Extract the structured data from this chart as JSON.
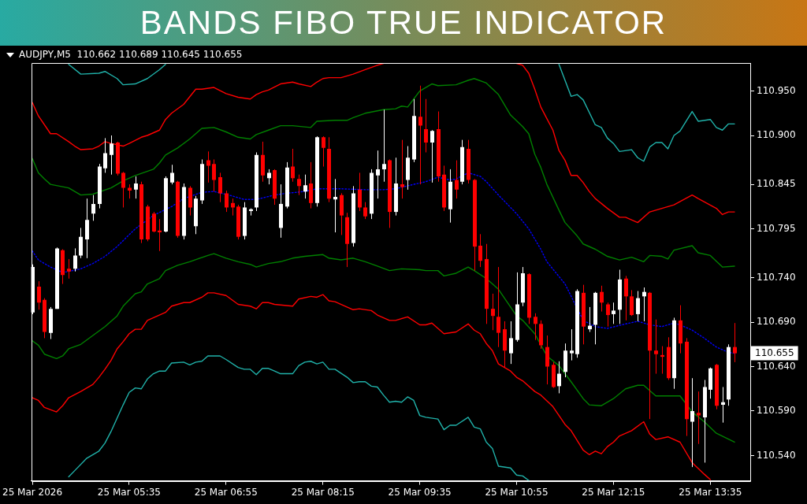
{
  "chart_data": {
    "type": "candlestick",
    "title": "BANDS FIBO TRUE INDICATOR",
    "subtitle": "AUDJPY,M5  110.662 110.689 110.645 110.655",
    "x": [
      "2026-03-25T04:15",
      "2026-03-25T04:20",
      "2026-03-25T04:25",
      "2026-03-25T04:30",
      "2026-03-25T04:35",
      "2026-03-25T04:40",
      "2026-03-25T04:45",
      "2026-03-25T04:50",
      "2026-03-25T04:55",
      "2026-03-25T05:00",
      "2026-03-25T05:05",
      "2026-03-25T05:10",
      "2026-03-25T05:15",
      "2026-03-25T05:20",
      "2026-03-25T05:25",
      "2026-03-25T05:30",
      "2026-03-25T05:35",
      "2026-03-25T05:40",
      "2026-03-25T05:45",
      "2026-03-25T05:50",
      "2026-03-25T05:55",
      "2026-03-25T06:00",
      "2026-03-25T06:05",
      "2026-03-25T06:10",
      "2026-03-25T06:15",
      "2026-03-25T06:20",
      "2026-03-25T06:25",
      "2026-03-25T06:30",
      "2026-03-25T06:35",
      "2026-03-25T06:40",
      "2026-03-25T06:45",
      "2026-03-25T06:50",
      "2026-03-25T06:55",
      "2026-03-25T07:00",
      "2026-03-25T07:05",
      "2026-03-25T07:10",
      "2026-03-25T07:15",
      "2026-03-25T07:20",
      "2026-03-25T07:25",
      "2026-03-25T07:30",
      "2026-03-25T07:35",
      "2026-03-25T07:40",
      "2026-03-25T07:45",
      "2026-03-25T07:50",
      "2026-03-25T07:55",
      "2026-03-25T08:00",
      "2026-03-25T08:05",
      "2026-03-25T08:10",
      "2026-03-25T08:15",
      "2026-03-25T08:20",
      "2026-03-25T08:25",
      "2026-03-25T08:30",
      "2026-03-25T08:35",
      "2026-03-25T08:40",
      "2026-03-25T08:45",
      "2026-03-25T08:50",
      "2026-03-25T08:55",
      "2026-03-25T09:00",
      "2026-03-25T09:05",
      "2026-03-25T09:10",
      "2026-03-25T09:15",
      "2026-03-25T09:20",
      "2026-03-25T09:25",
      "2026-03-25T09:30",
      "2026-03-25T09:35",
      "2026-03-25T09:40",
      "2026-03-25T09:45",
      "2026-03-25T09:50",
      "2026-03-25T09:55",
      "2026-03-25T10:00",
      "2026-03-25T10:05",
      "2026-03-25T10:10",
      "2026-03-25T10:15",
      "2026-03-25T10:20",
      "2026-03-25T10:25",
      "2026-03-25T10:30",
      "2026-03-25T10:35",
      "2026-03-25T10:40",
      "2026-03-25T10:45",
      "2026-03-25T10:50",
      "2026-03-25T10:55",
      "2026-03-25T11:00",
      "2026-03-25T11:05",
      "2026-03-25T11:10",
      "2026-03-25T11:15",
      "2026-03-25T11:20",
      "2026-03-25T11:25",
      "2026-03-25T11:30",
      "2026-03-25T11:35",
      "2026-03-25T11:40",
      "2026-03-25T11:45",
      "2026-03-25T11:50",
      "2026-03-25T11:55",
      "2026-03-25T12:00",
      "2026-03-25T12:05",
      "2026-03-25T12:10",
      "2026-03-25T12:15",
      "2026-03-25T12:20",
      "2026-03-25T12:25",
      "2026-03-25T12:30",
      "2026-03-25T12:35",
      "2026-03-25T12:40",
      "2026-03-25T12:45",
      "2026-03-25T12:50",
      "2026-03-25T12:55",
      "2026-03-25T13:00",
      "2026-03-25T13:05",
      "2026-03-25T13:10",
      "2026-03-25T13:15",
      "2026-03-25T13:20",
      "2026-03-25T13:25",
      "2026-03-25T13:30",
      "2026-03-25T13:35",
      "2026-03-25T13:40",
      "2026-03-25T13:45",
      "2026-03-25T13:50",
      "2026-03-25T13:55"
    ],
    "ohlc": [
      [
        110.701,
        110.755,
        110.699,
        110.752
      ],
      [
        110.73,
        110.736,
        110.704,
        110.712
      ],
      [
        110.715,
        110.717,
        110.672,
        110.679
      ],
      [
        110.678,
        110.707,
        110.671,
        110.705
      ],
      [
        110.705,
        110.774,
        110.705,
        110.773
      ],
      [
        110.771,
        110.772,
        110.733,
        110.743
      ],
      [
        110.75,
        110.761,
        110.739,
        110.747
      ],
      [
        110.75,
        110.773,
        110.747,
        110.765
      ],
      [
        110.765,
        110.796,
        110.762,
        110.786
      ],
      [
        110.783,
        110.829,
        110.762,
        110.805
      ],
      [
        110.812,
        110.833,
        110.804,
        110.823
      ],
      [
        110.823,
        110.868,
        110.818,
        110.865
      ],
      [
        110.863,
        110.897,
        110.858,
        110.88
      ],
      [
        110.878,
        110.9,
        110.856,
        110.891
      ],
      [
        110.892,
        110.893,
        110.855,
        110.857
      ],
      [
        110.858,
        110.859,
        110.819,
        110.841
      ],
      [
        110.841,
        110.845,
        110.829,
        110.838
      ],
      [
        110.839,
        110.854,
        110.829,
        110.846
      ],
      [
        110.845,
        110.848,
        110.779,
        110.783
      ],
      [
        110.82,
        110.822,
        110.781,
        110.783
      ],
      [
        110.812,
        110.814,
        110.791,
        110.792
      ],
      [
        110.793,
        110.806,
        110.77,
        110.791
      ],
      [
        110.792,
        110.854,
        110.791,
        110.852
      ],
      [
        110.847,
        110.867,
        110.845,
        110.858
      ],
      [
        110.848,
        110.849,
        110.785,
        110.787
      ],
      [
        110.787,
        110.846,
        110.783,
        110.842
      ],
      [
        110.841,
        110.843,
        110.81,
        110.819
      ],
      [
        110.798,
        110.832,
        110.789,
        110.829
      ],
      [
        110.827,
        110.873,
        110.823,
        110.868
      ],
      [
        110.872,
        110.882,
        110.847,
        110.866
      ],
      [
        110.868,
        110.873,
        110.837,
        110.85
      ],
      [
        110.853,
        110.858,
        110.825,
        110.835
      ],
      [
        110.835,
        110.838,
        110.814,
        110.819
      ],
      [
        110.824,
        110.829,
        110.81,
        110.819
      ],
      [
        110.82,
        110.822,
        110.783,
        110.786
      ],
      [
        110.787,
        110.825,
        110.783,
        110.819
      ],
      [
        110.815,
        110.818,
        110.81,
        110.817
      ],
      [
        110.819,
        110.881,
        110.815,
        110.878
      ],
      [
        110.878,
        110.893,
        110.848,
        110.855
      ],
      [
        110.852,
        110.862,
        110.845,
        110.858
      ],
      [
        110.861,
        110.862,
        110.822,
        110.829
      ],
      [
        110.796,
        110.845,
        110.785,
        110.823
      ],
      [
        110.82,
        110.87,
        110.818,
        110.864
      ],
      [
        110.865,
        110.885,
        110.848,
        110.852
      ],
      [
        110.851,
        110.856,
        110.833,
        110.843
      ],
      [
        110.837,
        110.856,
        110.829,
        110.844
      ],
      [
        110.846,
        110.87,
        110.818,
        110.824
      ],
      [
        110.824,
        110.899,
        110.82,
        110.898
      ],
      [
        110.898,
        110.899,
        110.865,
        110.886
      ],
      [
        110.885,
        110.898,
        110.825,
        110.829
      ],
      [
        110.828,
        110.851,
        110.791,
        110.831
      ],
      [
        110.833,
        110.835,
        110.788,
        110.81
      ],
      [
        110.808,
        110.813,
        110.752,
        110.778
      ],
      [
        110.779,
        110.843,
        110.775,
        110.835
      ],
      [
        110.839,
        110.858,
        110.815,
        110.819
      ],
      [
        110.819,
        110.825,
        110.806,
        110.809
      ],
      [
        110.812,
        110.862,
        110.806,
        110.858
      ],
      [
        110.855,
        110.883,
        110.829,
        110.862
      ],
      [
        110.862,
        110.929,
        110.848,
        110.868
      ],
      [
        110.872,
        110.873,
        110.796,
        110.814
      ],
      [
        110.814,
        110.875,
        110.81,
        110.846
      ],
      [
        110.845,
        110.895,
        110.829,
        110.842
      ],
      [
        110.85,
        110.888,
        110.839,
        110.875
      ],
      [
        110.873,
        110.941,
        110.87,
        110.922
      ],
      [
        110.921,
        110.956,
        110.845,
        110.911
      ],
      [
        110.907,
        110.941,
        110.881,
        110.892
      ],
      [
        110.892,
        110.906,
        110.847,
        110.905
      ],
      [
        110.907,
        110.927,
        110.848,
        110.854
      ],
      [
        110.856,
        110.866,
        110.815,
        110.819
      ],
      [
        110.817,
        110.862,
        110.802,
        110.848
      ],
      [
        110.85,
        110.872,
        110.829,
        110.839
      ],
      [
        110.848,
        110.895,
        110.845,
        110.887
      ],
      [
        110.885,
        110.895,
        110.846,
        110.85
      ],
      [
        110.85,
        110.851,
        110.748,
        110.775
      ],
      [
        110.776,
        110.789,
        110.752,
        110.759
      ],
      [
        110.761,
        110.778,
        110.688,
        110.705
      ],
      [
        110.705,
        110.722,
        110.681,
        110.697
      ],
      [
        110.696,
        110.752,
        110.662,
        110.678
      ],
      [
        110.682,
        110.691,
        110.639,
        110.658
      ],
      [
        110.655,
        110.691,
        110.643,
        110.672
      ],
      [
        110.67,
        110.746,
        110.668,
        110.71
      ],
      [
        110.712,
        110.752,
        110.708,
        110.745
      ],
      [
        110.744,
        110.745,
        110.688,
        110.695
      ],
      [
        110.696,
        110.7,
        110.67,
        110.688
      ],
      [
        110.688,
        110.692,
        110.66,
        110.664
      ],
      [
        110.662,
        110.675,
        110.62,
        110.64
      ],
      [
        110.642,
        110.645,
        110.616,
        110.617
      ],
      [
        110.618,
        110.646,
        110.61,
        110.632
      ],
      [
        110.634,
        110.666,
        110.628,
        110.658
      ],
      [
        110.655,
        110.682,
        110.647,
        110.658
      ],
      [
        110.654,
        110.727,
        110.65,
        110.725
      ],
      [
        110.723,
        110.732,
        110.665,
        110.685
      ],
      [
        110.682,
        110.707,
        110.679,
        110.686
      ],
      [
        110.687,
        110.724,
        110.665,
        110.723
      ],
      [
        110.724,
        110.731,
        110.702,
        110.712
      ],
      [
        110.71,
        110.712,
        110.685,
        110.698
      ],
      [
        110.699,
        110.712,
        110.688,
        110.703
      ],
      [
        110.704,
        110.749,
        110.688,
        110.738
      ],
      [
        110.739,
        110.742,
        110.692,
        110.719
      ],
      [
        110.719,
        110.726,
        110.697,
        110.698
      ],
      [
        110.699,
        110.725,
        110.691,
        110.717
      ],
      [
        110.719,
        110.729,
        110.691,
        110.724
      ],
      [
        110.723,
        110.724,
        110.581,
        110.658
      ],
      [
        110.658,
        110.693,
        110.632,
        110.654
      ],
      [
        110.653,
        110.663,
        110.632,
        110.651
      ],
      [
        110.662,
        110.673,
        110.625,
        110.627
      ],
      [
        110.627,
        110.695,
        110.615,
        110.692
      ],
      [
        110.692,
        110.709,
        110.655,
        110.666
      ],
      [
        110.668,
        110.672,
        110.562,
        110.581
      ],
      [
        110.578,
        110.627,
        110.527,
        110.59
      ],
      [
        110.588,
        110.612,
        110.553,
        110.585
      ],
      [
        110.583,
        110.625,
        110.532,
        110.617
      ],
      [
        110.614,
        110.639,
        110.604,
        110.638
      ],
      [
        110.642,
        110.643,
        110.592,
        110.596
      ],
      [
        110.597,
        110.617,
        110.577,
        110.6
      ],
      [
        110.603,
        110.665,
        110.596,
        110.662
      ],
      [
        110.662,
        110.689,
        110.645,
        110.655
      ]
    ],
    "colors": [
      "#ffffff",
      "#ff0000",
      "#ff0000",
      "#ffffff",
      "#ffffff",
      "#ff0000",
      "#ff0000",
      "#ffffff",
      "#ffffff",
      "#ffffff",
      "#ffffff",
      "#ffffff",
      "#ffffff",
      "#ffffff",
      "#ff0000",
      "#ff0000",
      "#ff0000",
      "#ffffff",
      "#ff0000",
      "#ff0000",
      "#ff0000",
      "#ff0000",
      "#ffffff",
      "#ffffff",
      "#ff0000",
      "#ffffff",
      "#ff0000",
      "#ffffff",
      "#ffffff",
      "#ff0000",
      "#ff0000",
      "#ff0000",
      "#ff0000",
      "#ff0000",
      "#ff0000",
      "#ffffff",
      "#ffffff",
      "#ffffff",
      "#ff0000",
      "#ffffff",
      "#ff0000",
      "#ffffff",
      "#ffffff",
      "#ff0000",
      "#ff0000",
      "#ffffff",
      "#ff0000",
      "#ffffff",
      "#ff0000",
      "#ff0000",
      "#ffffff",
      "#ff0000",
      "#ff0000",
      "#ffffff",
      "#ff0000",
      "#ff0000",
      "#ffffff",
      "#ffffff",
      "#ffffff",
      "#ff0000",
      "#ffffff",
      "#ff0000",
      "#ffffff",
      "#ffffff",
      "#ff0000",
      "#ff0000",
      "#ffffff",
      "#ff0000",
      "#ff0000",
      "#ffffff",
      "#ff0000",
      "#ffffff",
      "#ff0000",
      "#ff0000",
      "#ff0000",
      "#ff0000",
      "#ff0000",
      "#ff0000",
      "#ff0000",
      "#ffffff",
      "#ffffff",
      "#ffffff",
      "#ff0000",
      "#ff0000",
      "#ff0000",
      "#ff0000",
      "#ff0000",
      "#ffffff",
      "#ffffff",
      "#ffffff",
      "#ffffff",
      "#ff0000",
      "#ffffff",
      "#ffffff",
      "#ff0000",
      "#ff0000",
      "#ffffff",
      "#ffffff",
      "#ff0000",
      "#ff0000",
      "#ffffff",
      "#ffffff",
      "#ff0000",
      "#ff0000",
      "#ff0000",
      "#ff0000",
      "#ffffff",
      "#ff0000",
      "#ff0000",
      "#ffffff",
      "#ff0000",
      "#ffffff",
      "#ffffff",
      "#ff0000",
      "#ffffff",
      "#ffffff",
      "#ff0000"
    ],
    "line_style": "solid",
    "series": [
      {
        "type": "line",
        "color": "#20b2aa",
        "x": [
          "2026-03-25T04:45",
          "2026-03-25T04:55",
          "2026-03-25T05:10",
          "2026-03-25T05:15",
          "2026-03-25T05:25",
          "2026-03-25T05:30",
          "2026-03-25T05:40",
          "2026-03-25T05:50",
          "2026-03-25T06:00",
          "2026-03-25T06:05",
          "2026-03-25T08:30",
          "2026-03-25T11:30",
          "2026-03-25T11:40",
          "2026-03-25T11:45",
          "2026-03-25T11:50",
          "2026-03-25T12:00",
          "2026-03-25T12:05",
          "2026-03-25T12:10",
          "2026-03-25T12:15",
          "2026-03-25T12:20",
          "2026-03-25T12:30",
          "2026-03-25T12:35",
          "2026-03-25T12:40",
          "2026-03-25T12:45",
          "2026-03-25T12:50",
          "2026-03-25T12:55",
          "2026-03-25T13:00",
          "2026-03-25T13:05",
          "2026-03-25T13:10",
          "2026-03-25T13:20",
          "2026-03-25T13:25",
          "2026-03-25T13:35",
          "2026-03-25T13:40",
          "2026-03-25T13:45",
          "2026-03-25T13:50",
          "2026-03-25T13:55"
        ],
        "values": [
          110.98,
          110.969,
          110.97,
          110.972,
          110.964,
          110.957,
          110.958,
          110.964,
          110.974,
          110.98,
          null,
          110.98,
          110.944,
          110.946,
          110.94,
          110.912,
          110.909,
          110.897,
          110.891,
          110.882,
          110.884,
          110.875,
          110.871,
          110.887,
          110.892,
          110.892,
          110.885,
          110.9,
          110.905,
          110.927,
          110.916,
          110.918,
          110.909,
          110.906,
          110.913,
          110.913
        ]
      },
      {
        "type": "line",
        "color": "#ff0000",
        "x": [
          "2026-03-25T04:15",
          "2026-03-25T04:20",
          "2026-03-25T04:30",
          "2026-03-25T04:35",
          "2026-03-25T04:45",
          "2026-03-25T04:50",
          "2026-03-25T04:55",
          "2026-03-25T05:05",
          "2026-03-25T05:10",
          "2026-03-25T05:15",
          "2026-03-25T05:20",
          "2026-03-25T05:30",
          "2026-03-25T05:35",
          "2026-03-25T05:45",
          "2026-03-25T05:50",
          "2026-03-25T06:00",
          "2026-03-25T06:05",
          "2026-03-25T06:10",
          "2026-03-25T06:20",
          "2026-03-25T06:30",
          "2026-03-25T06:35",
          "2026-03-25T06:45",
          "2026-03-25T06:55",
          "2026-03-25T07:05",
          "2026-03-25T07:15",
          "2026-03-25T07:20",
          "2026-03-25T07:25",
          "2026-03-25T07:30",
          "2026-03-25T07:40",
          "2026-03-25T07:50",
          "2026-03-25T07:55",
          "2026-03-25T08:05",
          "2026-03-25T08:10",
          "2026-03-25T08:15",
          "2026-03-25T08:20",
          "2026-03-25T08:30",
          "2026-03-25T08:40",
          "2026-03-25T08:50",
          "2026-03-25T09:00",
          "2026-03-25T09:05",
          "2026-03-25T10:05",
          "2026-03-25T10:55",
          "2026-03-25T11:00",
          "2026-03-25T11:05",
          "2026-03-25T11:10",
          "2026-03-25T11:15",
          "2026-03-25T11:20",
          "2026-03-25T11:25",
          "2026-03-25T11:30",
          "2026-03-25T11:35",
          "2026-03-25T11:40",
          "2026-03-25T11:45",
          "2026-03-25T11:50",
          "2026-03-25T11:55",
          "2026-03-25T12:00",
          "2026-03-25T12:10",
          "2026-03-25T12:20",
          "2026-03-25T12:25",
          "2026-03-25T12:35",
          "2026-03-25T12:45",
          "2026-03-25T12:55",
          "2026-03-25T13:05",
          "2026-03-25T13:20",
          "2026-03-25T13:25",
          "2026-03-25T13:40",
          "2026-03-25T13:45",
          "2026-03-25T13:50",
          "2026-03-25T13:55"
        ],
        "values": [
          110.937,
          110.922,
          110.902,
          110.902,
          110.893,
          110.888,
          110.884,
          110.885,
          110.888,
          110.893,
          110.891,
          110.888,
          110.891,
          110.898,
          110.9,
          110.906,
          110.918,
          110.925,
          110.935,
          110.952,
          110.952,
          110.954,
          110.947,
          110.943,
          110.941,
          110.946,
          110.949,
          110.951,
          110.958,
          110.96,
          110.958,
          110.955,
          110.96,
          110.964,
          110.965,
          110.965,
          110.969,
          110.974,
          110.979,
          110.981,
          null,
          110.981,
          110.979,
          110.97,
          110.952,
          110.932,
          110.919,
          110.906,
          110.883,
          110.872,
          110.855,
          110.855,
          110.847,
          110.837,
          110.829,
          110.818,
          110.808,
          110.808,
          110.802,
          110.814,
          110.818,
          110.822,
          110.833,
          110.829,
          110.818,
          110.811,
          110.814,
          110.814
        ]
      },
      {
        "type": "line",
        "color": "#008000",
        "x": [
          "2026-03-25T04:15",
          "2026-03-25T04:20",
          "2026-03-25T04:25",
          "2026-03-25T04:30",
          "2026-03-25T04:45",
          "2026-03-25T04:55",
          "2026-03-25T05:05",
          "2026-03-25T05:20",
          "2026-03-25T05:30",
          "2026-03-25T05:40",
          "2026-03-25T05:55",
          "2026-03-25T06:00",
          "2026-03-25T06:05",
          "2026-03-25T06:15",
          "2026-03-25T06:25",
          "2026-03-25T06:35",
          "2026-03-25T06:45",
          "2026-03-25T06:55",
          "2026-03-25T07:05",
          "2026-03-25T07:15",
          "2026-03-25T07:20",
          "2026-03-25T07:30",
          "2026-03-25T07:40",
          "2026-03-25T07:50",
          "2026-03-25T08:05",
          "2026-03-25T08:10",
          "2026-03-25T08:25",
          "2026-03-25T08:35",
          "2026-03-25T08:40",
          "2026-03-25T08:50",
          "2026-03-25T09:05",
          "2026-03-25T09:15",
          "2026-03-25T09:20",
          "2026-03-25T09:25",
          "2026-03-25T09:30",
          "2026-03-25T09:35",
          "2026-03-25T09:45",
          "2026-03-25T09:50",
          "2026-03-25T10:05",
          "2026-03-25T10:15",
          "2026-03-25T10:20",
          "2026-03-25T10:30",
          "2026-03-25T10:40",
          "2026-03-25T10:50",
          "2026-03-25T11:00",
          "2026-03-25T11:05",
          "2026-03-25T11:10",
          "2026-03-25T11:15",
          "2026-03-25T11:20",
          "2026-03-25T11:30",
          "2026-03-25T11:35",
          "2026-03-25T11:45",
          "2026-03-25T11:50",
          "2026-03-25T12:00",
          "2026-03-25T12:10",
          "2026-03-25T12:20",
          "2026-03-25T12:30",
          "2026-03-25T12:40",
          "2026-03-25T12:45",
          "2026-03-25T12:55",
          "2026-03-25T13:00",
          "2026-03-25T13:05",
          "2026-03-25T13:20",
          "2026-03-25T13:25",
          "2026-03-25T13:35",
          "2026-03-25T13:45",
          "2026-03-25T13:55"
        ],
        "values": [
          110.874,
          110.858,
          110.851,
          110.845,
          110.841,
          110.833,
          110.834,
          110.841,
          110.849,
          110.855,
          110.862,
          110.869,
          110.878,
          110.886,
          110.896,
          110.908,
          110.909,
          110.904,
          110.898,
          110.896,
          110.901,
          110.906,
          110.911,
          110.911,
          110.909,
          110.916,
          110.917,
          110.917,
          110.92,
          110.925,
          110.929,
          110.93,
          110.933,
          110.932,
          110.941,
          110.95,
          110.958,
          110.956,
          110.957,
          110.962,
          110.964,
          110.959,
          110.946,
          110.923,
          110.91,
          110.902,
          110.879,
          110.864,
          110.845,
          110.816,
          110.802,
          110.787,
          110.778,
          110.772,
          110.764,
          110.76,
          110.763,
          110.758,
          110.765,
          110.764,
          110.761,
          110.771,
          110.776,
          110.768,
          110.765,
          110.752,
          110.753
        ]
      },
      {
        "type": "line",
        "color": "#0000ff",
        "line_style": "dotted",
        "x": [
          "2026-03-25T04:15",
          "2026-03-25T04:20",
          "2026-03-25T04:30",
          "2026-03-25T04:40",
          "2026-03-25T04:45",
          "2026-03-25T04:55",
          "2026-03-25T05:05",
          "2026-03-25T05:15",
          "2026-03-25T05:25",
          "2026-03-25T05:40",
          "2026-03-25T05:55",
          "2026-03-25T06:10",
          "2026-03-25T06:20",
          "2026-03-25T06:35",
          "2026-03-25T06:45",
          "2026-03-25T07:00",
          "2026-03-25T07:10",
          "2026-03-25T07:20",
          "2026-03-25T07:35",
          "2026-03-25T07:45",
          "2026-03-25T08:00",
          "2026-03-25T08:10",
          "2026-03-25T08:30",
          "2026-03-25T08:50",
          "2026-03-25T09:05",
          "2026-03-25T09:15",
          "2026-03-25T09:30",
          "2026-03-25T09:40",
          "2026-03-25T09:50",
          "2026-03-25T10:00",
          "2026-03-25T10:05",
          "2026-03-25T10:15",
          "2026-03-25T10:25",
          "2026-03-25T10:30",
          "2026-03-25T10:40",
          "2026-03-25T10:55",
          "2026-03-25T11:05",
          "2026-03-25T11:15",
          "2026-03-25T11:20",
          "2026-03-25T11:35",
          "2026-03-25T11:50",
          "2026-03-25T12:00",
          "2026-03-25T12:10",
          "2026-03-25T12:25",
          "2026-03-25T12:35",
          "2026-03-25T12:45",
          "2026-03-25T12:55",
          "2026-03-25T13:05",
          "2026-03-25T13:10",
          "2026-03-25T13:20",
          "2026-03-25T13:30",
          "2026-03-25T13:40",
          "2026-03-25T13:50",
          "2026-03-25T13:55"
        ],
        "values": [
          110.77,
          110.76,
          110.752,
          110.746,
          110.747,
          110.75,
          110.756,
          110.764,
          110.775,
          110.795,
          110.81,
          110.82,
          110.829,
          110.836,
          110.837,
          110.832,
          110.828,
          110.828,
          110.833,
          110.835,
          110.837,
          110.84,
          110.84,
          110.839,
          110.839,
          110.84,
          110.845,
          110.848,
          110.853,
          110.85,
          110.851,
          110.858,
          110.854,
          110.848,
          110.833,
          110.812,
          110.795,
          110.772,
          110.758,
          110.733,
          110.692,
          110.685,
          110.683,
          110.688,
          110.691,
          110.687,
          110.685,
          110.689,
          110.687,
          110.681,
          110.672,
          110.662,
          110.656,
          110.655
        ]
      },
      {
        "type": "line",
        "color": "#008000",
        "x": [
          "2026-03-25T04:15",
          "2026-03-25T04:20",
          "2026-03-25T04:25",
          "2026-03-25T04:35",
          "2026-03-25T04:40",
          "2026-03-25T04:45",
          "2026-03-25T04:55",
          "2026-03-25T05:05",
          "2026-03-25T05:15",
          "2026-03-25T05:25",
          "2026-03-25T05:30",
          "2026-03-25T05:40",
          "2026-03-25T05:45",
          "2026-03-25T05:50",
          "2026-03-25T06:00",
          "2026-03-25T06:05",
          "2026-03-25T06:15",
          "2026-03-25T06:25",
          "2026-03-25T06:40",
          "2026-03-25T06:45",
          "2026-03-25T06:55",
          "2026-03-25T07:05",
          "2026-03-25T07:15",
          "2026-03-25T07:20",
          "2026-03-25T07:30",
          "2026-03-25T07:40",
          "2026-03-25T07:50",
          "2026-03-25T08:00",
          "2026-03-25T08:15",
          "2026-03-25T08:20",
          "2026-03-25T08:30",
          "2026-03-25T08:40",
          "2026-03-25T08:50",
          "2026-03-25T09:00",
          "2026-03-25T09:10",
          "2026-03-25T09:20",
          "2026-03-25T09:35",
          "2026-03-25T09:40",
          "2026-03-25T09:50",
          "2026-03-25T09:55",
          "2026-03-25T10:05",
          "2026-03-25T10:15",
          "2026-03-25T10:20",
          "2026-03-25T10:30",
          "2026-03-25T10:40",
          "2026-03-25T10:55",
          "2026-03-25T11:00",
          "2026-03-25T11:10",
          "2026-03-25T11:20",
          "2026-03-25T11:30",
          "2026-03-25T11:40",
          "2026-03-25T11:50",
          "2026-03-25T11:55",
          "2026-03-25T12:05",
          "2026-03-25T12:15",
          "2026-03-25T12:25",
          "2026-03-25T12:35",
          "2026-03-25T12:40",
          "2026-03-25T12:50",
          "2026-03-25T13:00",
          "2026-03-25T13:10",
          "2026-03-25T13:20",
          "2026-03-25T13:30",
          "2026-03-25T13:40",
          "2026-03-25T13:55"
        ],
        "values": [
          110.669,
          110.664,
          110.654,
          110.649,
          110.652,
          110.66,
          110.665,
          110.675,
          110.685,
          110.697,
          110.708,
          110.722,
          110.724,
          110.733,
          110.739,
          110.748,
          110.754,
          110.758,
          110.765,
          110.767,
          110.762,
          110.758,
          110.755,
          110.752,
          110.756,
          110.758,
          110.762,
          110.764,
          110.766,
          110.762,
          110.76,
          110.762,
          110.758,
          110.753,
          110.748,
          110.75,
          110.749,
          110.748,
          110.748,
          110.742,
          110.745,
          110.752,
          110.748,
          110.739,
          110.727,
          110.697,
          110.692,
          110.677,
          110.652,
          110.641,
          110.623,
          110.604,
          110.597,
          110.596,
          110.604,
          110.615,
          110.619,
          110.619,
          110.607,
          110.607,
          110.607,
          110.589,
          110.578,
          110.565,
          110.555
        ]
      },
      {
        "type": "line",
        "color": "#ff0000",
        "x": [
          "2026-03-25T04:15",
          "2026-03-25T04:20",
          "2026-03-25T04:25",
          "2026-03-25T04:35",
          "2026-03-25T04:40",
          "2026-03-25T04:45",
          "2026-03-25T04:55",
          "2026-03-25T05:05",
          "2026-03-25T05:10",
          "2026-03-25T05:15",
          "2026-03-25T05:20",
          "2026-03-25T05:25",
          "2026-03-25T05:30",
          "2026-03-25T05:35",
          "2026-03-25T05:40",
          "2026-03-25T05:45",
          "2026-03-25T05:50",
          "2026-03-25T06:05",
          "2026-03-25T06:10",
          "2026-03-25T06:20",
          "2026-03-25T06:25",
          "2026-03-25T06:35",
          "2026-03-25T06:40",
          "2026-03-25T06:45",
          "2026-03-25T06:55",
          "2026-03-25T07:05",
          "2026-03-25T07:15",
          "2026-03-25T07:20",
          "2026-03-25T07:25",
          "2026-03-25T07:30",
          "2026-03-25T07:35",
          "2026-03-25T07:50",
          "2026-03-25T07:55",
          "2026-03-25T08:05",
          "2026-03-25T08:10",
          "2026-03-25T08:15",
          "2026-03-25T08:20",
          "2026-03-25T08:25",
          "2026-03-25T08:40",
          "2026-03-25T08:45",
          "2026-03-25T08:55",
          "2026-03-25T09:00",
          "2026-03-25T09:10",
          "2026-03-25T09:15",
          "2026-03-25T09:25",
          "2026-03-25T09:35",
          "2026-03-25T09:40",
          "2026-03-25T09:45",
          "2026-03-25T09:55",
          "2026-03-25T10:05",
          "2026-03-25T10:15",
          "2026-03-25T10:20",
          "2026-03-25T10:25",
          "2026-03-25T10:30",
          "2026-03-25T10:35",
          "2026-03-25T10:40",
          "2026-03-25T10:50",
          "2026-03-25T10:55",
          "2026-03-25T11:00",
          "2026-03-25T11:10",
          "2026-03-25T11:15",
          "2026-03-25T11:25",
          "2026-03-25T11:35",
          "2026-03-25T11:40",
          "2026-03-25T11:50",
          "2026-03-25T11:55",
          "2026-03-25T12:00",
          "2026-03-25T12:05",
          "2026-03-25T12:10",
          "2026-03-25T12:15",
          "2026-03-25T12:20",
          "2026-03-25T12:30",
          "2026-03-25T12:40",
          "2026-03-25T12:45",
          "2026-03-25T12:50",
          "2026-03-25T13:00",
          "2026-03-25T13:10",
          "2026-03-25T13:20",
          "2026-03-25T13:30",
          "2026-03-25T13:35"
        ],
        "values": [
          110.605,
          110.602,
          110.594,
          110.589,
          110.596,
          110.605,
          110.612,
          110.62,
          110.628,
          110.637,
          110.647,
          110.66,
          110.668,
          110.677,
          110.682,
          110.682,
          110.692,
          110.701,
          110.708,
          110.712,
          110.712,
          110.718,
          110.723,
          110.723,
          110.72,
          110.71,
          110.708,
          110.705,
          110.712,
          110.712,
          110.71,
          110.708,
          110.716,
          110.719,
          110.718,
          110.721,
          110.714,
          110.713,
          110.704,
          110.705,
          110.703,
          110.698,
          110.692,
          110.692,
          110.696,
          110.687,
          110.687,
          110.689,
          110.677,
          110.679,
          110.688,
          110.681,
          110.677,
          110.666,
          110.658,
          110.643,
          110.635,
          110.628,
          110.624,
          110.612,
          110.608,
          110.595,
          110.575,
          110.568,
          110.546,
          110.541,
          110.545,
          110.542,
          110.55,
          110.555,
          110.562,
          110.568,
          110.578,
          110.564,
          110.558,
          110.561,
          110.555,
          110.532,
          110.519,
          110.513
        ]
      },
      {
        "type": "line",
        "color": "#20b2aa",
        "x": [
          "2026-03-25T04:45",
          "2026-03-25T04:50",
          "2026-03-25T05:00",
          "2026-03-25T05:10",
          "2026-03-25T05:15",
          "2026-03-25T05:20",
          "2026-03-25T05:25",
          "2026-03-25T05:30",
          "2026-03-25T05:35",
          "2026-03-25T05:40",
          "2026-03-25T05:45",
          "2026-03-25T05:50",
          "2026-03-25T05:55",
          "2026-03-25T06:00",
          "2026-03-25T06:05",
          "2026-03-25T06:10",
          "2026-03-25T06:20",
          "2026-03-25T06:25",
          "2026-03-25T06:30",
          "2026-03-25T06:35",
          "2026-03-25T06:40",
          "2026-03-25T06:50",
          "2026-03-25T06:55",
          "2026-03-25T07:05",
          "2026-03-25T07:10",
          "2026-03-25T07:15",
          "2026-03-25T07:20",
          "2026-03-25T07:25",
          "2026-03-25T07:30",
          "2026-03-25T07:35",
          "2026-03-25T07:40",
          "2026-03-25T07:50",
          "2026-03-25T07:55",
          "2026-03-25T08:00",
          "2026-03-25T08:05",
          "2026-03-25T08:10",
          "2026-03-25T08:15",
          "2026-03-25T08:20",
          "2026-03-25T08:25",
          "2026-03-25T08:35",
          "2026-03-25T08:40",
          "2026-03-25T08:45",
          "2026-03-25T08:50",
          "2026-03-25T08:55",
          "2026-03-25T09:00",
          "2026-03-25T09:05",
          "2026-03-25T09:10",
          "2026-03-25T09:15",
          "2026-03-25T09:20",
          "2026-03-25T09:25",
          "2026-03-25T09:30",
          "2026-03-25T09:35",
          "2026-03-25T09:40",
          "2026-03-25T09:50",
          "2026-03-25T09:55",
          "2026-03-25T10:00",
          "2026-03-25T10:05",
          "2026-03-25T10:15",
          "2026-03-25T10:20",
          "2026-03-25T10:25",
          "2026-03-25T10:30",
          "2026-03-25T10:35",
          "2026-03-25T10:40",
          "2026-03-25T10:50",
          "2026-03-25T10:55",
          "2026-03-25T11:00",
          "2026-03-25T11:05"
        ],
        "values": [
          110.516,
          110.523,
          110.537,
          110.545,
          110.554,
          110.567,
          110.582,
          110.597,
          110.611,
          110.616,
          110.615,
          110.626,
          110.632,
          110.635,
          110.635,
          110.644,
          110.645,
          110.642,
          110.645,
          110.646,
          110.652,
          110.652,
          110.648,
          110.639,
          110.637,
          110.637,
          110.631,
          110.638,
          110.638,
          110.635,
          110.632,
          110.632,
          110.641,
          110.645,
          110.646,
          110.643,
          110.645,
          110.637,
          110.637,
          110.628,
          110.622,
          110.623,
          110.623,
          110.618,
          110.617,
          110.608,
          110.6,
          110.601,
          110.6,
          110.606,
          110.602,
          110.585,
          110.583,
          110.581,
          110.569,
          110.574,
          110.574,
          110.583,
          110.572,
          110.57,
          110.555,
          110.548,
          110.528,
          110.526,
          110.518,
          110.517,
          110.512
        ]
      }
    ],
    "xlim": [
      "2026-03-25T04:14",
      "2026-03-25T14:08"
    ],
    "xticks": [
      {
        "value": "2026-03-25T04:15",
        "label": "25 Mar 2026"
      },
      {
        "value": "2026-03-25T05:35",
        "label": "25 Mar 05:35"
      },
      {
        "value": "2026-03-25T06:55",
        "label": "25 Mar 06:55"
      },
      {
        "value": "2026-03-25T08:15",
        "label": "25 Mar 08:15"
      },
      {
        "value": "2026-03-25T09:35",
        "label": "25 Mar 09:35"
      },
      {
        "value": "2026-03-25T10:55",
        "label": "25 Mar 10:55"
      },
      {
        "value": "2026-03-25T12:15",
        "label": "25 Mar 12:15"
      },
      {
        "value": "2026-03-25T13:35",
        "label": "25 Mar 13:35"
      }
    ],
    "ylim": [
      110.5115,
      110.9815
    ],
    "yticks": [
      {
        "value": 110.54,
        "label": "110.540"
      },
      {
        "value": 110.59,
        "label": "110.590"
      },
      {
        "value": 110.64,
        "label": "110.640"
      },
      {
        "value": 110.69,
        "label": "110.690"
      },
      {
        "value": 110.74,
        "label": "110.740"
      },
      {
        "value": 110.795,
        "label": "110.795"
      },
      {
        "value": 110.845,
        "label": "110.845"
      },
      {
        "value": 110.9,
        "label": "110.900"
      },
      {
        "value": 110.95,
        "label": "110.950"
      }
    ],
    "annotations": [
      "110.655"
    ],
    "grid": false,
    "legend": false
  }
}
